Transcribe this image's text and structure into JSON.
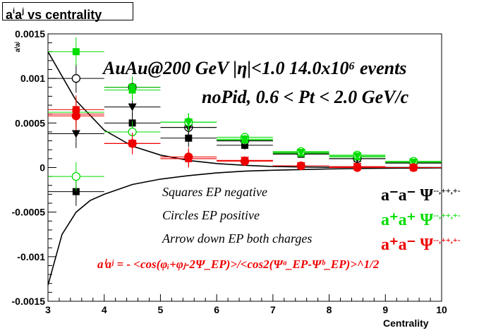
{
  "title": {
    "prefix": "a",
    "sup1": "i",
    "mid": "a",
    "sup2": "j",
    "suffix": " vs centrality"
  },
  "annotations": {
    "line1": "AuAu@200 GeV |η|<1.0 14.0x10⁶ events",
    "line2": "noPid, 0.6 < Pt < 2.0 GeV/c",
    "squares": "Squares EP negative",
    "circles": "Circles EP positive",
    "arrows": "Arrow down EP both charges",
    "formula": "aⁱaʲ = - <cos(φᵢ+φⱼ-2Ψ_EP)>/<cos2(Ψᵃ_EP-Ψᵇ_EP)>^1/2"
  },
  "legend": [
    {
      "pair": "a⁻a⁻",
      "psi": "Ψ",
      "sup": "--,++,+-",
      "color": "#000000"
    },
    {
      "pair": "a⁺a⁺",
      "psi": "Ψ",
      "sup": "--,++,+-",
      "color": "#00dd00"
    },
    {
      "pair": "a⁺a⁻",
      "psi": "Ψ",
      "sup": "--,++,+-",
      "color": "#ee0000"
    }
  ],
  "chart_data": {
    "type": "scatter",
    "xlabel": "Centrality",
    "ylabel": "aⁱaʲ",
    "xlim": [
      3,
      10
    ],
    "ylim": [
      -0.0015,
      0.0015
    ],
    "xticks": [
      "3",
      "4",
      "5",
      "6",
      "7",
      "8",
      "9",
      "10"
    ],
    "yticks": [
      "-0.0015",
      "-0.001",
      "-0.0005",
      "0",
      "0.0005",
      "0.001",
      "0.0015"
    ],
    "x": [
      3.5,
      4.5,
      5.5,
      6.5,
      7.5,
      8.5,
      9.5
    ],
    "series": [
      {
        "color": "#000000",
        "marker": "square",
        "values": [
          -0.00027,
          0.0005,
          0.00033,
          0.00025,
          0.00015,
          0.0001,
          5e-05
        ]
      },
      {
        "color": "#000000",
        "marker": "circle",
        "values": [
          0.001,
          0.0009,
          0.00045,
          0.0003,
          0.00016,
          0.0001,
          6e-05
        ]
      },
      {
        "color": "#000000",
        "marker": "triangle-down",
        "values": [
          0.00038,
          0.00068,
          0.00045,
          0.0003,
          0.00016,
          0.0001,
          5e-05
        ]
      },
      {
        "color": "#00dd00",
        "marker": "square",
        "values": [
          0.0013,
          0.00087,
          0.00051,
          0.00031,
          0.00016,
          0.00012,
          6e-05
        ]
      },
      {
        "color": "#00dd00",
        "marker": "circle",
        "values": [
          -0.0001,
          0.0004,
          0.00051,
          0.00034,
          0.00018,
          0.00014,
          7e-05
        ]
      },
      {
        "color": "#00dd00",
        "marker": "triangle-down",
        "values": [
          0.00062,
          0.0009,
          0.00051,
          0.00032,
          0.00017,
          0.00013,
          6e-05
        ]
      },
      {
        "color": "#ee0000",
        "marker": "square",
        "values": [
          0.00065,
          0.00027,
          0.0001,
          8e-05,
          2e-05,
          1e-05,
          0.0
        ]
      },
      {
        "color": "#ee0000",
        "marker": "circle",
        "values": [
          0.00058,
          0.00027,
          0.00012,
          7e-05,
          2e-05,
          0.0,
          0.0
        ]
      },
      {
        "color": "#ee0000",
        "marker": "triangle-down",
        "values": [
          0.0006,
          0.00027,
          0.0001,
          8e-05,
          2e-05,
          1e-05,
          0.0
        ]
      }
    ],
    "curves": [
      {
        "name": "upper",
        "x": [
          3.0,
          3.5,
          4.0,
          4.5,
          5.0,
          5.5,
          6.0,
          6.5,
          7.0,
          7.5,
          8.0,
          9.0,
          10.0
        ],
        "values": [
          0.0013,
          0.00075,
          0.00042,
          0.00024,
          0.00014,
          8e-05,
          4.5e-05,
          2.5e-05,
          1.2e-05,
          6e-06,
          3e-06,
          1e-06,
          0.0
        ]
      },
      {
        "name": "lower",
        "x": [
          3.0,
          3.25,
          3.5,
          3.75,
          4.0,
          4.5,
          5.0,
          5.5,
          6.0,
          6.5,
          7.0,
          8.0,
          9.0,
          10.0
        ],
        "values": [
          -0.00132,
          -0.00075,
          -0.0005,
          -0.00037,
          -0.0003,
          -0.00019,
          -0.00013,
          -9e-05,
          -6e-05,
          -4e-05,
          -3e-05,
          -1.5e-05,
          -7e-06,
          -3e-06
        ]
      }
    ]
  }
}
